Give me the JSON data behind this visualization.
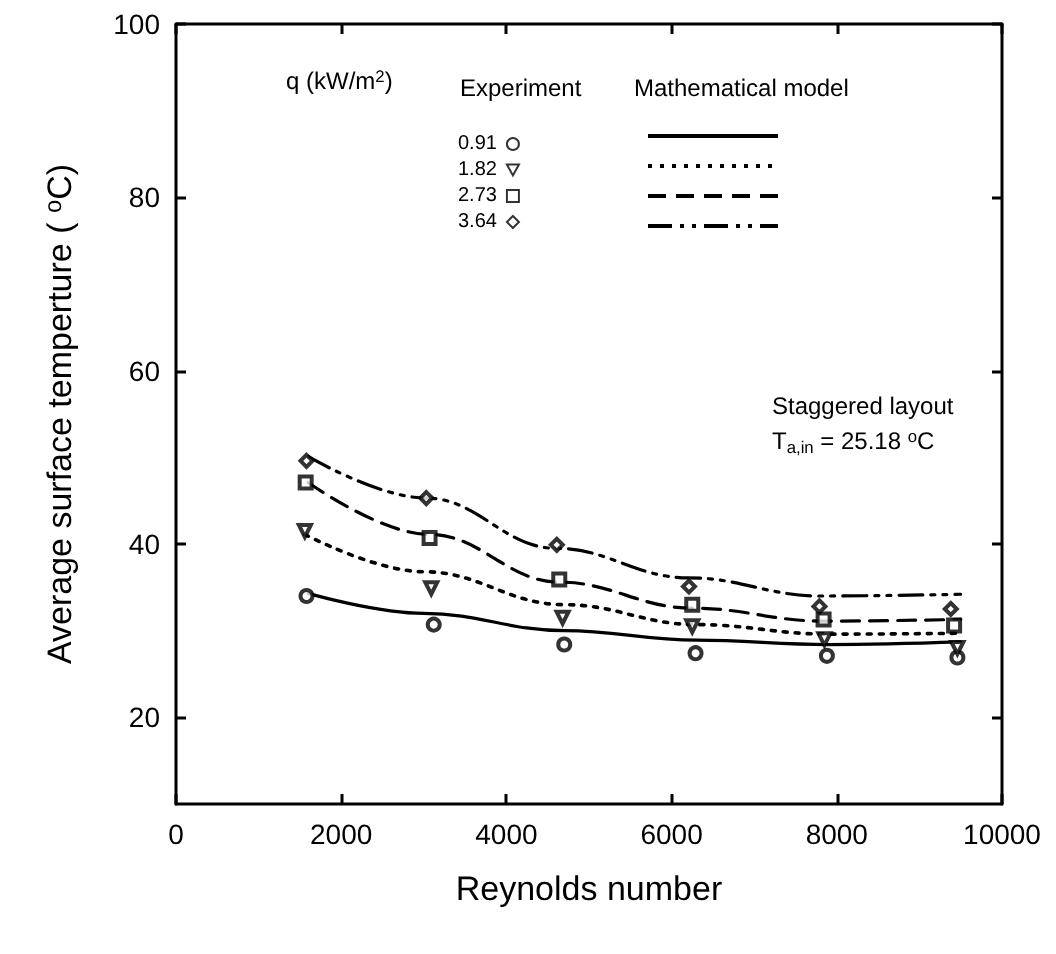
{
  "chart_data": {
    "type": "scatter",
    "xlabel": "Reynolds number",
    "ylabel": "Average surface temperture ( $^{o}$C)",
    "legend_title": "q (kW/m$^{2}$)",
    "annotations": [
      "Experiment",
      "Mathematical model",
      "Staggered layout",
      "T$_{a,in}$ = 25.18 $^{o}$C"
    ],
    "xlim": [
      0,
      10000
    ],
    "xticks": [
      0,
      {
        "value": 2000,
        "label": "2000"
      },
      {
        "value": 4000,
        "label": "4000"
      },
      {
        "value": 6000,
        "label": "6000"
      },
      {
        "value": 8000,
        "label": "8000"
      },
      {
        "value": 10000,
        "label": "10000"
      }
    ],
    "ylim": [
      10,
      100
    ],
    "yticks": [
      20,
      40,
      60,
      80,
      100
    ],
    "grid": false,
    "legend": "top",
    "series": [
      {
        "name": "0.91",
        "marker": "circle",
        "color": "#000000",
        "x": [
          1580,
          3120,
          4700,
          6290,
          7880,
          9460
        ],
        "values": [
          34.0,
          30.7,
          28.4,
          27.4,
          27.1,
          26.9
        ]
      },
      {
        "name": "1.82",
        "marker": "triangle",
        "color": "#000000",
        "x": [
          1560,
          3090,
          4680,
          6250,
          7850,
          9460
        ],
        "values": [
          41.5,
          34.9,
          31.5,
          30.5,
          29.0,
          28.0
        ]
      },
      {
        "name": "2.73",
        "marker": "square",
        "color": "#000000",
        "x": [
          1570,
          3070,
          4640,
          6250,
          7840,
          9420
        ],
        "values": [
          47.1,
          40.7,
          35.9,
          33.0,
          31.3,
          30.6
        ]
      },
      {
        "name": "3.64",
        "marker": "diamond",
        "color": "#000000",
        "x": [
          1580,
          3030,
          4610,
          6210,
          7790,
          9380
        ],
        "values": [
          49.6,
          45.3,
          39.9,
          35.1,
          32.8,
          32.5
        ]
      },
      {
        "type": "line",
        "line_style": "solid",
        "color": "#000000",
        "x": [
          1600,
          3000,
          4700,
          6300,
          7900,
          9500
        ],
        "values": [
          34.3,
          32.0,
          30.0,
          28.9,
          28.4,
          28.7
        ]
      },
      {
        "type": "line",
        "line_style": "dotted",
        "color": "#000000",
        "x": [
          1560,
          3000,
          4700,
          6300,
          7900,
          9500
        ],
        "values": [
          41.1,
          36.8,
          33.0,
          30.7,
          29.6,
          29.7
        ]
      },
      {
        "type": "line",
        "line_style": "dashed",
        "color": "#000000",
        "x": [
          1600,
          3070,
          4640,
          6250,
          7840,
          9500
        ],
        "values": [
          47.1,
          41.1,
          35.6,
          32.6,
          31.1,
          31.3
        ]
      },
      {
        "type": "line",
        "line_style": "dashdot",
        "color": "#000000",
        "x": [
          1600,
          3030,
          4600,
          6200,
          7800,
          9500
        ],
        "values": [
          50.1,
          45.3,
          39.5,
          36.1,
          34.0,
          34.2
        ]
      }
    ]
  }
}
